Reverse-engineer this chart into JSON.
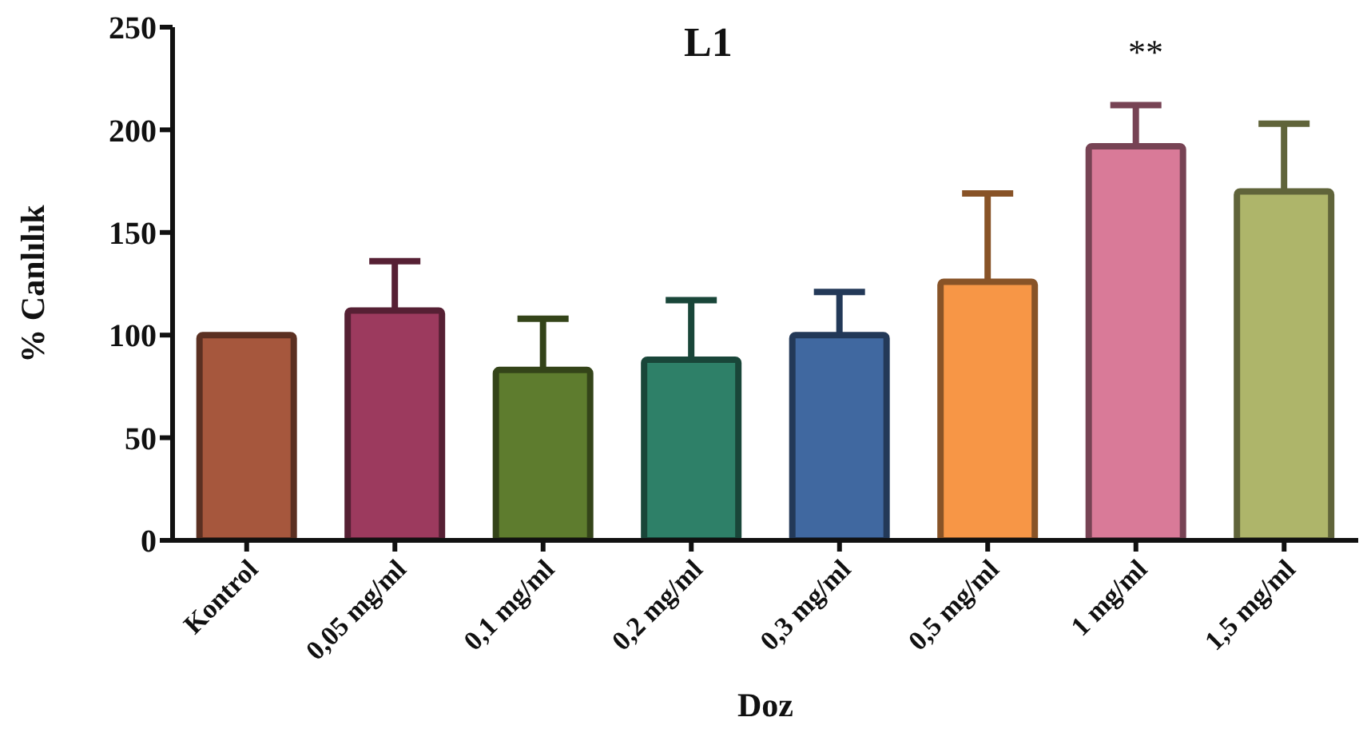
{
  "chart_data": {
    "type": "bar",
    "title": "L1",
    "xlabel": "Doz",
    "ylabel": "% Canlılık",
    "categories": [
      "Kontrol",
      "0,05 mg/ml",
      "0,1 mg/ml",
      "0,2 mg/ml",
      "0,3 mg/ml",
      "0,5 mg/ml",
      "1 mg/ml",
      "1,5 mg/ml"
    ],
    "values": [
      100,
      112,
      83,
      88,
      100,
      126,
      192,
      170
    ],
    "errors": [
      null,
      [
        112,
        136
      ],
      [
        83,
        108
      ],
      [
        88,
        117
      ],
      [
        100,
        121
      ],
      [
        126,
        169
      ],
      [
        192,
        212
      ],
      [
        170,
        203
      ]
    ],
    "colors": [
      "#a6573d",
      "#9c3a5e",
      "#5e7c2e",
      "#2e8068",
      "#4068a0",
      "#f79646",
      "#d97a98",
      "#aeb56a"
    ],
    "ylim": [
      0,
      250
    ],
    "yticks": [
      0,
      50,
      100,
      150,
      200,
      250
    ],
    "grid": false,
    "annotations": [
      "**"
    ]
  }
}
